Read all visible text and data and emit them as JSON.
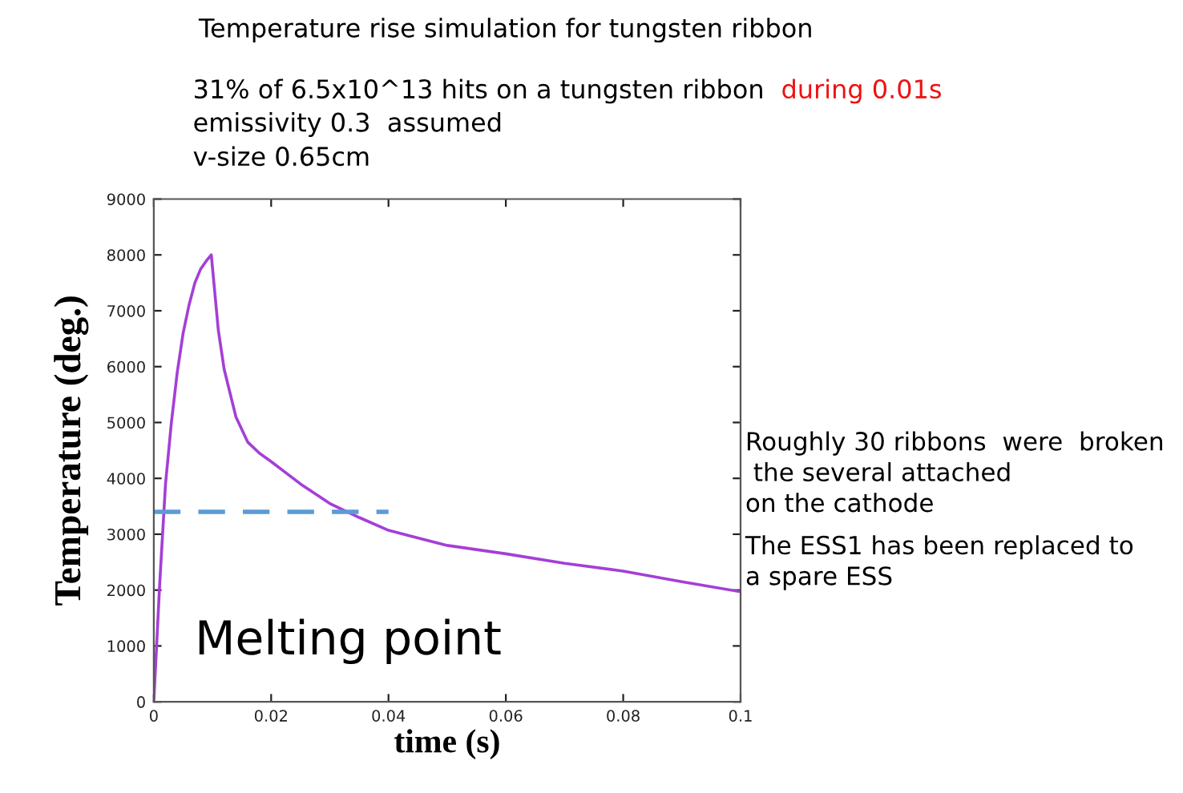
{
  "chart_data": {
    "type": "line",
    "title": "Temperature rise simulation for tungsten ribbon",
    "subtitle": "31% of 6.5x10^13 hits on a tungsten ribbon",
    "xlabel": "time (s)",
    "ylabel": "Temperature (deg.)",
    "series": [
      {
        "color": "#a43fd6",
        "x": [
          0,
          0.001,
          0.002,
          0.003,
          0.004,
          0.005,
          0.006,
          0.007,
          0.008,
          0.009,
          0.0098,
          0.011,
          0.012,
          0.014,
          0.016,
          0.018,
          0.02,
          0.025,
          0.03,
          0.035,
          0.04,
          0.05,
          0.06,
          0.07,
          0.08,
          0.09,
          0.1
        ],
        "values": [
          0,
          2100,
          3900,
          5000,
          5900,
          6600,
          7100,
          7500,
          7750,
          7900,
          8000,
          6650,
          5950,
          5100,
          4650,
          4450,
          4300,
          3900,
          3550,
          3300,
          3070,
          2800,
          2650,
          2480,
          2340,
          2150,
          1970
        ]
      },
      {
        "color": "#5b9bd5",
        "line_style": "dashed",
        "x": [
          0,
          0.04
        ],
        "values": [
          3400,
          3400
        ]
      }
    ],
    "xlim": [
      0,
      0.1
    ],
    "xticks": [
      0,
      0.02,
      0.04,
      0.06,
      0.08,
      0.1
    ],
    "ylim": [
      0,
      9000
    ],
    "yticks": [
      0,
      1000,
      2000,
      3000,
      4000,
      5000,
      6000,
      7000,
      8000,
      9000
    ],
    "grid": false,
    "legend": false,
    "annotations": [
      "during 0.01s",
      "emissivity 0.3  assumed",
      "v-size 0.65cm",
      "Roughly 30 ribbons  were  broken\n the several attached\non the cathode",
      "The ESS1 has been replaced to\na spare ESS",
      "Melting point"
    ]
  }
}
